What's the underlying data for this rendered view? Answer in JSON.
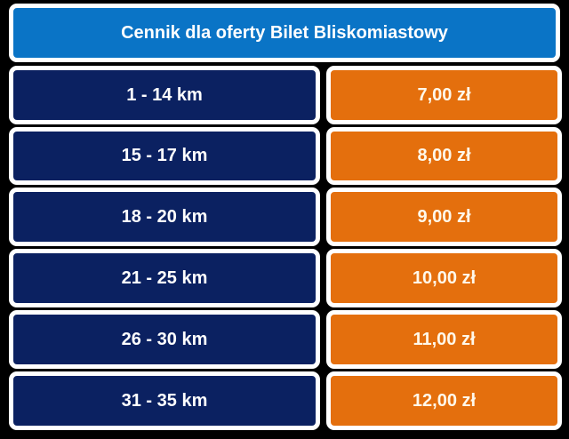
{
  "title": "Cennik dla oferty Bilet Bliskomiastowy",
  "rows": [
    {
      "distance": "1 - 14 km",
      "price": "7,00 zł"
    },
    {
      "distance": "15 - 17 km",
      "price": "8,00 zł"
    },
    {
      "distance": "18 - 20 km",
      "price": "9,00 zł"
    },
    {
      "distance": "21 - 25 km",
      "price": "10,00 zł"
    },
    {
      "distance": "26 - 30 km",
      "price": "11,00 zł"
    },
    {
      "distance": "31 - 35 km",
      "price": "12,00 zł"
    }
  ],
  "colors": {
    "header": "#0a74c6",
    "distance": "#0b2161",
    "price": "#e46f0d",
    "background": "#000000"
  }
}
